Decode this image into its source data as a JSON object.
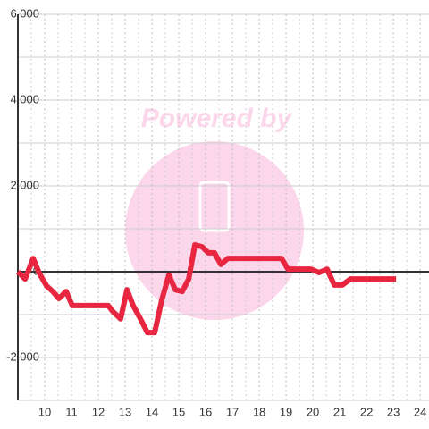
{
  "watermark": "Powered by",
  "chart_data": {
    "type": "line",
    "x": [
      9,
      9.27,
      9.57,
      9.8,
      10.07,
      10.3,
      10.53,
      10.8,
      11.03,
      11.53,
      12.37,
      12.53,
      12.83,
      13.07,
      13.3,
      13.57,
      13.83,
      14.1,
      14.37,
      14.63,
      14.87,
      15.13,
      15.37,
      15.6,
      15.87,
      16.1,
      16.33,
      16.57,
      16.83,
      17.07,
      18.83,
      19.07,
      19.93,
      20.23,
      20.53,
      20.8,
      21.1,
      21.4,
      23.1
    ],
    "series": [
      {
        "color": "#e8263f",
        "values": [
          0,
          -170,
          310,
          -40,
          -330,
          -460,
          -625,
          -460,
          -790,
          -790,
          -790,
          -920,
          -1100,
          -420,
          -790,
          -1100,
          -1420,
          -1420,
          -650,
          -80,
          -420,
          -460,
          -170,
          625,
          580,
          440,
          440,
          170,
          310,
          310,
          310,
          60,
          60,
          -20,
          60,
          -310,
          -310,
          -170,
          -170
        ]
      }
    ],
    "xlim": [
      9,
      24.33
    ],
    "xticks": [
      10,
      11,
      12,
      13,
      14,
      15,
      16,
      17,
      18,
      19,
      20,
      21,
      22,
      23,
      24
    ],
    "x_minor_ticks": [
      9.5,
      10.5,
      11.5,
      12.5,
      13.5,
      14.5,
      15.5,
      16.5,
      17.5,
      18.5,
      19.5,
      20.5,
      21.5,
      22.5,
      23.5
    ],
    "ylim": [
      -3000,
      6000
    ],
    "yticks": [
      {
        "value": -2000,
        "label": "-2,000"
      },
      0,
      {
        "value": 2000,
        "label": "2,000"
      },
      {
        "value": 4000,
        "label": "4,000"
      },
      {
        "value": 6000,
        "label": "6,000"
      }
    ],
    "y_minor_ticks": [
      -3000,
      -1000,
      1000,
      3000,
      5000
    ],
    "grid": true
  }
}
